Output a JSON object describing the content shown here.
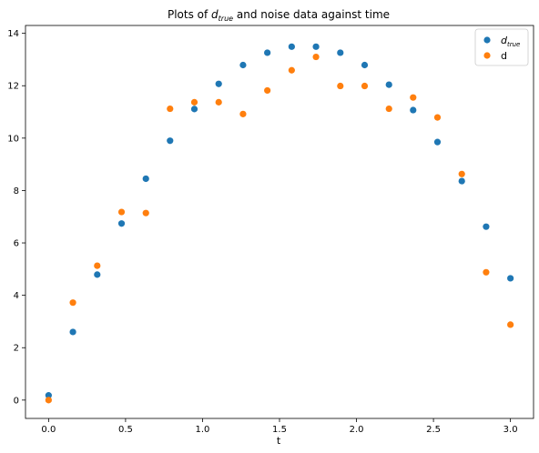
{
  "chart_data": {
    "type": "scatter",
    "title": {
      "prefix": "Plots of ",
      "var": "d",
      "var_sub": "true",
      "suffix": " and noise data against time"
    },
    "xlabel": "t",
    "ylabel": "",
    "xlim": [
      -0.15,
      3.15
    ],
    "ylim": [
      -0.7,
      14.3
    ],
    "xticks": [
      0.0,
      0.5,
      1.0,
      1.5,
      2.0,
      2.5,
      3.0
    ],
    "xtick_labels": [
      "0.0",
      "0.5",
      "1.0",
      "1.5",
      "2.0",
      "2.5",
      "3.0"
    ],
    "yticks": [
      0,
      2,
      4,
      6,
      8,
      10,
      12,
      14
    ],
    "ytick_labels": [
      "0",
      "2",
      "4",
      "6",
      "8",
      "10",
      "12",
      "14"
    ],
    "grid": false,
    "legend_position": "top-right",
    "x": [
      0.0,
      0.158,
      0.316,
      0.474,
      0.632,
      0.789,
      0.947,
      1.105,
      1.263,
      1.421,
      1.579,
      1.737,
      1.895,
      2.053,
      2.211,
      2.368,
      2.526,
      2.684,
      2.842,
      3.0
    ],
    "series": [
      {
        "name": "d_true",
        "legend_main": "d",
        "legend_sub": "true",
        "color": "#1f77b4",
        "values": [
          0.18,
          2.6,
          4.79,
          6.74,
          8.45,
          9.9,
          11.11,
          12.07,
          12.79,
          13.26,
          13.49,
          13.49,
          13.26,
          12.79,
          12.04,
          11.07,
          9.85,
          8.36,
          6.62,
          4.65
        ]
      },
      {
        "name": "d",
        "legend_main": "d",
        "legend_sub": "",
        "color": "#ff7f0e",
        "values": [
          0.0,
          3.72,
          5.13,
          7.18,
          7.14,
          11.12,
          11.37,
          11.37,
          10.92,
          11.82,
          12.59,
          13.1,
          11.99,
          11.99,
          11.12,
          11.55,
          10.79,
          8.63,
          4.88,
          2.88
        ]
      }
    ]
  }
}
